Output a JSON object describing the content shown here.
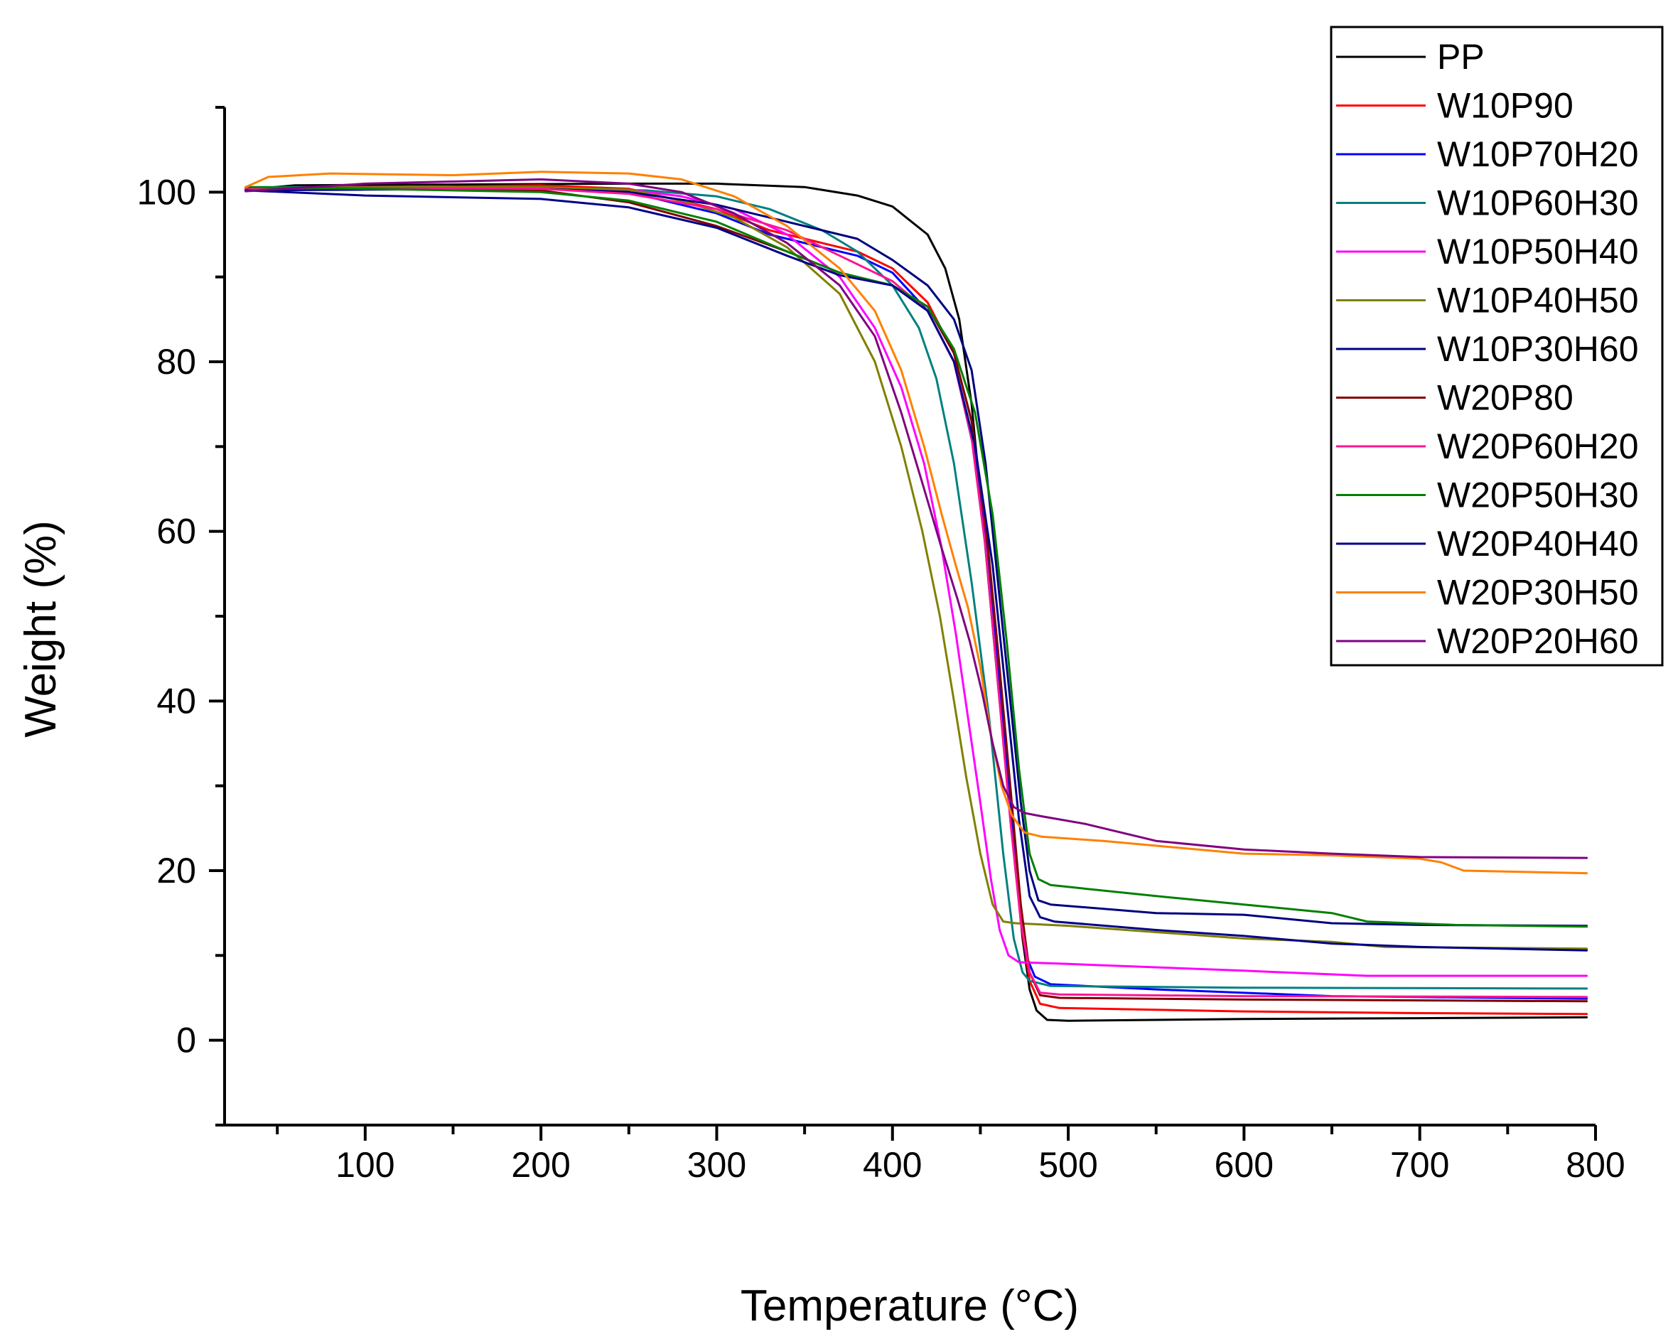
{
  "chart_data": {
    "type": "line",
    "title": "",
    "xlabel": "Temperature (°C)",
    "ylabel": "Weight (%)",
    "xlim": [
      20,
      800
    ],
    "ylim": [
      -10,
      110
    ],
    "xticks": [
      100,
      200,
      300,
      400,
      500,
      600,
      700,
      800
    ],
    "yticks": [
      0,
      20,
      40,
      60,
      80,
      100
    ],
    "grid": false,
    "legend_position": "top-right",
    "series": [
      {
        "name": "PP",
        "color": "#000000",
        "points": [
          [
            32,
            100.3
          ],
          [
            60,
            100.8
          ],
          [
            150,
            100.9
          ],
          [
            250,
            101
          ],
          [
            300,
            101
          ],
          [
            350,
            100.6
          ],
          [
            380,
            99.6
          ],
          [
            400,
            98.3
          ],
          [
            420,
            95
          ],
          [
            430,
            91
          ],
          [
            438,
            85
          ],
          [
            445,
            75
          ],
          [
            452,
            60
          ],
          [
            460,
            42
          ],
          [
            468,
            25
          ],
          [
            474,
            12
          ],
          [
            478,
            6
          ],
          [
            482,
            3.5
          ],
          [
            488,
            2.4
          ],
          [
            500,
            2.3
          ],
          [
            600,
            2.5
          ],
          [
            700,
            2.6
          ],
          [
            795,
            2.7
          ]
        ]
      },
      {
        "name": "W10P90",
        "color": "#ff0000",
        "points": [
          [
            32,
            100.2
          ],
          [
            100,
            100.5
          ],
          [
            200,
            100.8
          ],
          [
            250,
            100.4
          ],
          [
            300,
            98
          ],
          [
            330,
            95.5
          ],
          [
            360,
            94
          ],
          [
            380,
            93
          ],
          [
            400,
            91
          ],
          [
            420,
            87
          ],
          [
            435,
            81
          ],
          [
            445,
            73
          ],
          [
            452,
            62
          ],
          [
            460,
            45
          ],
          [
            467,
            28
          ],
          [
            473,
            14
          ],
          [
            478,
            7
          ],
          [
            484,
            4.3
          ],
          [
            495,
            3.8
          ],
          [
            600,
            3.4
          ],
          [
            700,
            3.2
          ],
          [
            795,
            3.1
          ]
        ]
      },
      {
        "name": "W10P70H20",
        "color": "#0000ff",
        "points": [
          [
            32,
            100.2
          ],
          [
            100,
            100.4
          ],
          [
            200,
            100.6
          ],
          [
            250,
            100
          ],
          [
            300,
            97.5
          ],
          [
            330,
            95
          ],
          [
            360,
            93.5
          ],
          [
            380,
            92.5
          ],
          [
            400,
            90.5
          ],
          [
            420,
            86
          ],
          [
            435,
            80
          ],
          [
            446,
            70
          ],
          [
            455,
            55
          ],
          [
            463,
            38
          ],
          [
            470,
            20
          ],
          [
            476,
            10
          ],
          [
            481,
            7.5
          ],
          [
            490,
            6.6
          ],
          [
            550,
            6
          ],
          [
            650,
            5.2
          ],
          [
            795,
            4.9
          ]
        ]
      },
      {
        "name": "W10P60H30",
        "color": "#008080",
        "points": [
          [
            32,
            100.6
          ],
          [
            100,
            100.6
          ],
          [
            200,
            100.4
          ],
          [
            260,
            100.2
          ],
          [
            300,
            99.5
          ],
          [
            330,
            98
          ],
          [
            360,
            95.5
          ],
          [
            380,
            93
          ],
          [
            400,
            89
          ],
          [
            415,
            84
          ],
          [
            425,
            78
          ],
          [
            435,
            68
          ],
          [
            445,
            54
          ],
          [
            455,
            38
          ],
          [
            463,
            22
          ],
          [
            469,
            12
          ],
          [
            474,
            8
          ],
          [
            478,
            7
          ],
          [
            490,
            6.4
          ],
          [
            600,
            6.2
          ],
          [
            795,
            6.1
          ]
        ]
      },
      {
        "name": "W10P50H40",
        "color": "#ff00ff",
        "points": [
          [
            32,
            100.5
          ],
          [
            100,
            100.5
          ],
          [
            200,
            100.5
          ],
          [
            250,
            100.3
          ],
          [
            280,
            99.5
          ],
          [
            310,
            98
          ],
          [
            340,
            95
          ],
          [
            370,
            90
          ],
          [
            390,
            84
          ],
          [
            405,
            77
          ],
          [
            418,
            68
          ],
          [
            428,
            58
          ],
          [
            436,
            48
          ],
          [
            443,
            38
          ],
          [
            450,
            28
          ],
          [
            456,
            19
          ],
          [
            461,
            13
          ],
          [
            466,
            10
          ],
          [
            472,
            9.2
          ],
          [
            500,
            9
          ],
          [
            600,
            8.2
          ],
          [
            670,
            7.6
          ],
          [
            795,
            7.6
          ]
        ]
      },
      {
        "name": "W10P40H50",
        "color": "#808000",
        "points": [
          [
            32,
            100.4
          ],
          [
            100,
            100.6
          ],
          [
            200,
            100.6
          ],
          [
            250,
            100.3
          ],
          [
            280,
            99
          ],
          [
            310,
            97
          ],
          [
            340,
            93.5
          ],
          [
            370,
            88
          ],
          [
            390,
            80
          ],
          [
            405,
            70
          ],
          [
            417,
            60
          ],
          [
            427,
            50
          ],
          [
            435,
            40
          ],
          [
            442,
            31
          ],
          [
            450,
            22
          ],
          [
            457,
            16
          ],
          [
            463,
            14
          ],
          [
            470,
            13.8
          ],
          [
            500,
            13.5
          ],
          [
            600,
            12
          ],
          [
            650,
            11.6
          ],
          [
            680,
            11
          ],
          [
            795,
            10.8
          ]
        ]
      },
      {
        "name": "W10P30H60",
        "color": "#000080",
        "points": [
          [
            32,
            100.2
          ],
          [
            100,
            100.3
          ],
          [
            200,
            100.4
          ],
          [
            250,
            100
          ],
          [
            300,
            98.5
          ],
          [
            330,
            97
          ],
          [
            360,
            95.5
          ],
          [
            380,
            94.5
          ],
          [
            400,
            92
          ],
          [
            420,
            89
          ],
          [
            435,
            85
          ],
          [
            445,
            79
          ],
          [
            453,
            68
          ],
          [
            460,
            54
          ],
          [
            467,
            40
          ],
          [
            473,
            28
          ],
          [
            478,
            20
          ],
          [
            483,
            16.5
          ],
          [
            490,
            16
          ],
          [
            550,
            15
          ],
          [
            600,
            14.8
          ],
          [
            650,
            13.8
          ],
          [
            700,
            13.6
          ],
          [
            795,
            13.5
          ]
        ]
      },
      {
        "name": "W20P80",
        "color": "#800000",
        "points": [
          [
            32,
            100.4
          ],
          [
            100,
            100.5
          ],
          [
            200,
            100.2
          ],
          [
            250,
            98.8
          ],
          [
            300,
            96
          ],
          [
            340,
            93
          ],
          [
            370,
            90.5
          ],
          [
            400,
            89
          ],
          [
            420,
            86.5
          ],
          [
            435,
            81
          ],
          [
            445,
            73
          ],
          [
            453,
            61
          ],
          [
            460,
            46
          ],
          [
            467,
            30
          ],
          [
            473,
            16
          ],
          [
            478,
            8
          ],
          [
            484,
            5.3
          ],
          [
            495,
            5
          ],
          [
            600,
            4.8
          ],
          [
            795,
            4.6
          ]
        ]
      },
      {
        "name": "W20P60H20",
        "color": "#ff1493",
        "points": [
          [
            32,
            100.4
          ],
          [
            100,
            100.5
          ],
          [
            200,
            100.4
          ],
          [
            250,
            99.8
          ],
          [
            300,
            98
          ],
          [
            340,
            95.5
          ],
          [
            370,
            92.5
          ],
          [
            400,
            89.5
          ],
          [
            420,
            86
          ],
          [
            435,
            80
          ],
          [
            445,
            71
          ],
          [
            453,
            58
          ],
          [
            460,
            42
          ],
          [
            467,
            26
          ],
          [
            473,
            14
          ],
          [
            478,
            8
          ],
          [
            484,
            5.6
          ],
          [
            495,
            5.4
          ],
          [
            600,
            5.2
          ],
          [
            795,
            5.1
          ]
        ]
      },
      {
        "name": "W20P50H30",
        "color": "#008000",
        "points": [
          [
            32,
            100.6
          ],
          [
            100,
            100.4
          ],
          [
            200,
            100
          ],
          [
            250,
            99
          ],
          [
            300,
            96.5
          ],
          [
            340,
            93
          ],
          [
            370,
            90.5
          ],
          [
            400,
            89
          ],
          [
            420,
            86.5
          ],
          [
            435,
            81.5
          ],
          [
            447,
            74
          ],
          [
            457,
            62
          ],
          [
            465,
            47
          ],
          [
            472,
            32
          ],
          [
            478,
            22
          ],
          [
            483,
            19
          ],
          [
            490,
            18.3
          ],
          [
            550,
            17
          ],
          [
            600,
            16
          ],
          [
            650,
            15
          ],
          [
            670,
            14
          ],
          [
            720,
            13.6
          ],
          [
            795,
            13.4
          ]
        ]
      },
      {
        "name": "W20P40H40",
        "color": "#00008b",
        "points": [
          [
            32,
            100.2
          ],
          [
            100,
            99.6
          ],
          [
            200,
            99.2
          ],
          [
            250,
            98.2
          ],
          [
            300,
            95.8
          ],
          [
            340,
            92.5
          ],
          [
            370,
            90.2
          ],
          [
            400,
            89
          ],
          [
            420,
            86
          ],
          [
            435,
            80
          ],
          [
            447,
            70
          ],
          [
            457,
            56
          ],
          [
            465,
            40
          ],
          [
            472,
            26
          ],
          [
            478,
            17
          ],
          [
            484,
            14.5
          ],
          [
            492,
            14
          ],
          [
            550,
            13
          ],
          [
            600,
            12.3
          ],
          [
            650,
            11.4
          ],
          [
            700,
            11
          ],
          [
            795,
            10.6
          ]
        ]
      },
      {
        "name": "W20P30H50",
        "color": "#ff8000",
        "points": [
          [
            32,
            100.6
          ],
          [
            45,
            101.8
          ],
          [
            80,
            102.2
          ],
          [
            150,
            102
          ],
          [
            200,
            102.4
          ],
          [
            250,
            102.2
          ],
          [
            280,
            101.5
          ],
          [
            310,
            99.5
          ],
          [
            340,
            96
          ],
          [
            370,
            91
          ],
          [
            390,
            86
          ],
          [
            405,
            79
          ],
          [
            418,
            70
          ],
          [
            428,
            62
          ],
          [
            436,
            56
          ],
          [
            443,
            51
          ],
          [
            450,
            44
          ],
          [
            456,
            36
          ],
          [
            462,
            30
          ],
          [
            468,
            26.5
          ],
          [
            475,
            24.5
          ],
          [
            485,
            24
          ],
          [
            520,
            23.5
          ],
          [
            600,
            22
          ],
          [
            650,
            21.8
          ],
          [
            700,
            21.4
          ],
          [
            712,
            21
          ],
          [
            725,
            20
          ],
          [
            795,
            19.7
          ]
        ]
      },
      {
        "name": "W20P20H60",
        "color": "#800080",
        "points": [
          [
            32,
            100.1
          ],
          [
            100,
            101
          ],
          [
            200,
            101.5
          ],
          [
            250,
            101
          ],
          [
            280,
            100
          ],
          [
            310,
            97.5
          ],
          [
            340,
            94
          ],
          [
            370,
            89
          ],
          [
            390,
            83
          ],
          [
            405,
            74
          ],
          [
            418,
            65
          ],
          [
            428,
            58
          ],
          [
            437,
            52
          ],
          [
            444,
            47
          ],
          [
            451,
            41
          ],
          [
            457,
            35
          ],
          [
            463,
            30
          ],
          [
            469,
            27.5
          ],
          [
            475,
            26.8
          ],
          [
            485,
            26.4
          ],
          [
            510,
            25.5
          ],
          [
            550,
            23.5
          ],
          [
            600,
            22.5
          ],
          [
            650,
            22
          ],
          [
            700,
            21.6
          ],
          [
            795,
            21.5
          ]
        ]
      }
    ]
  }
}
